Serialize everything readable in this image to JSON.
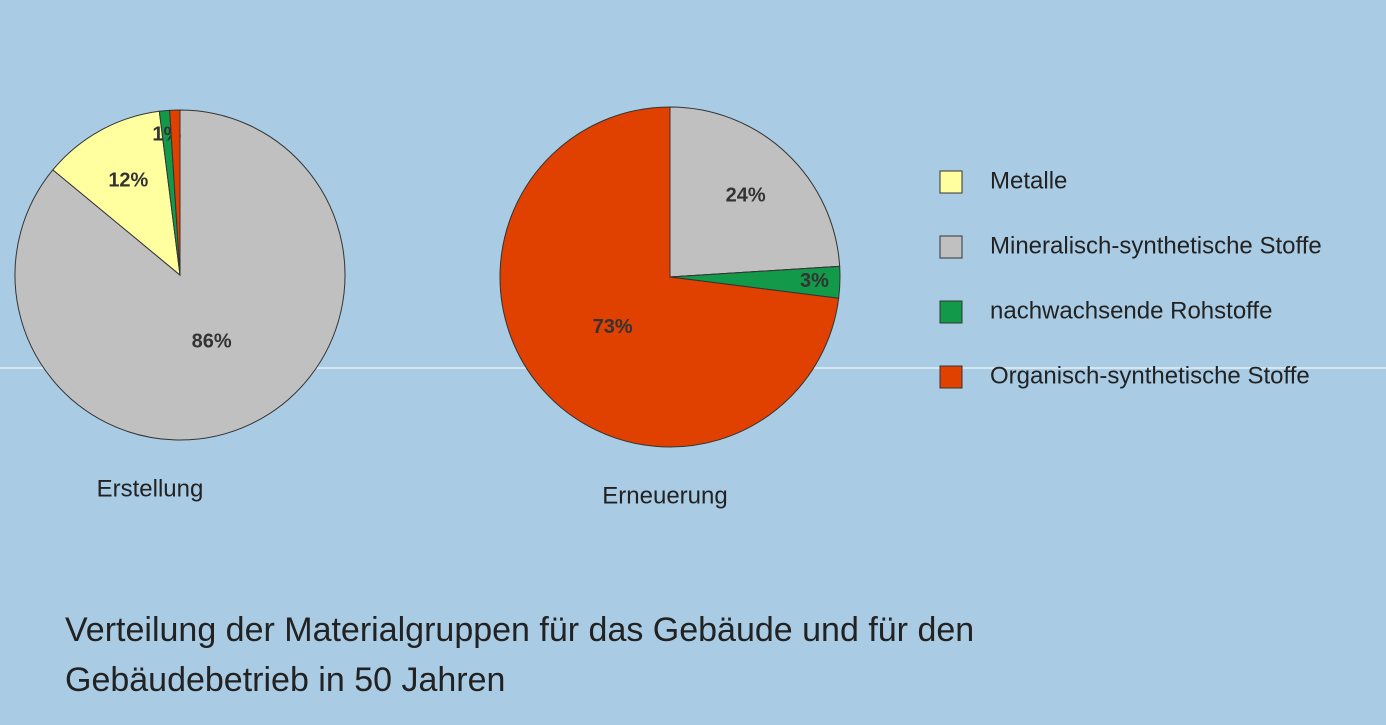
{
  "caption": "Verteilung der Materialgruppen für das Gebäude und für den Gebäudebetrieb in 50 Jahren",
  "chart_data": [
    {
      "type": "pie",
      "title": "Erstellung",
      "categories": [
        "Mineralisch-synthetische Stoffe",
        "Metalle",
        "nachwachsende Rohstoffe",
        "Organisch-synthetische Stoffe"
      ],
      "colors": [
        "#c0c0c0",
        "#ffffa0",
        "#129a4a",
        "#e04000"
      ],
      "values": [
        86,
        12,
        1,
        1
      ],
      "value_labels": [
        "86%",
        "12%",
        "1%",
        null
      ]
    },
    {
      "type": "pie",
      "title": "Erneuerung",
      "categories": [
        "Mineralisch-synthetische Stoffe",
        "Metalle",
        "nachwachsende Rohstoffe",
        "Organisch-synthetische Stoffe"
      ],
      "colors": [
        "#c0c0c0",
        "#ffffa0",
        "#129a4a",
        "#e04000"
      ],
      "values": [
        24,
        0,
        3,
        73
      ],
      "value_labels": [
        "24%",
        null,
        "3%",
        "73%"
      ]
    }
  ],
  "legend": [
    "Metalle",
    "Mineralisch-synthetische Stoffe",
    "nachwachsende Rohstoffe",
    "Organisch-synthetische Stoffe"
  ]
}
